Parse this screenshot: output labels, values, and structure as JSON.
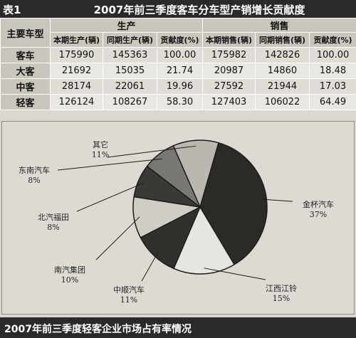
{
  "table": {
    "number": "表1",
    "title": "2007年前三季度客车分车型产销增长贡献度",
    "corner_label": "主要车型",
    "groups": [
      "生产",
      "销售"
    ],
    "subheaders": [
      "本期生产(辆)",
      "同期生产(辆)",
      "贡献度(%)",
      "本期销售(辆)",
      "同期销售(辆)",
      "贡献度(%)"
    ],
    "rows": [
      {
        "label": "客车",
        "values": [
          "175990",
          "145363",
          "100.00",
          "175982",
          "142826",
          "100.00"
        ]
      },
      {
        "label": "大客",
        "values": [
          "21692",
          "15035",
          "21.74",
          "20987",
          "14860",
          "18.48"
        ]
      },
      {
        "label": "中客",
        "values": [
          "28174",
          "22061",
          "19.96",
          "27592",
          "21944",
          "17.03"
        ]
      },
      {
        "label": "轻客",
        "values": [
          "126124",
          "108267",
          "58.30",
          "127403",
          "106022",
          "64.49"
        ]
      }
    ]
  },
  "chart_data": {
    "type": "pie",
    "title": "2007年前三季度轻客企业市场占有率情况",
    "slices": [
      {
        "name": "金杯汽车",
        "value": 37,
        "label": "37%",
        "color": "#2b2a27"
      },
      {
        "name": "江西江铃",
        "value": 15,
        "label": "15%",
        "color": "#e6e5df"
      },
      {
        "name": "中顺汽车",
        "value": 11,
        "label": "11%",
        "color": "#30302c"
      },
      {
        "name": "南汽集团",
        "value": 10,
        "label": "10%",
        "color": "#cfcdc6"
      },
      {
        "name": "北汽福田",
        "value": 8,
        "label": "8%",
        "color": "#3a3935"
      },
      {
        "name": "东南汽车",
        "value": 8,
        "label": "8%",
        "color": "#7a7873"
      },
      {
        "name": "其它",
        "value": 11,
        "label": "11%",
        "color": "#b9b7b0"
      }
    ]
  }
}
